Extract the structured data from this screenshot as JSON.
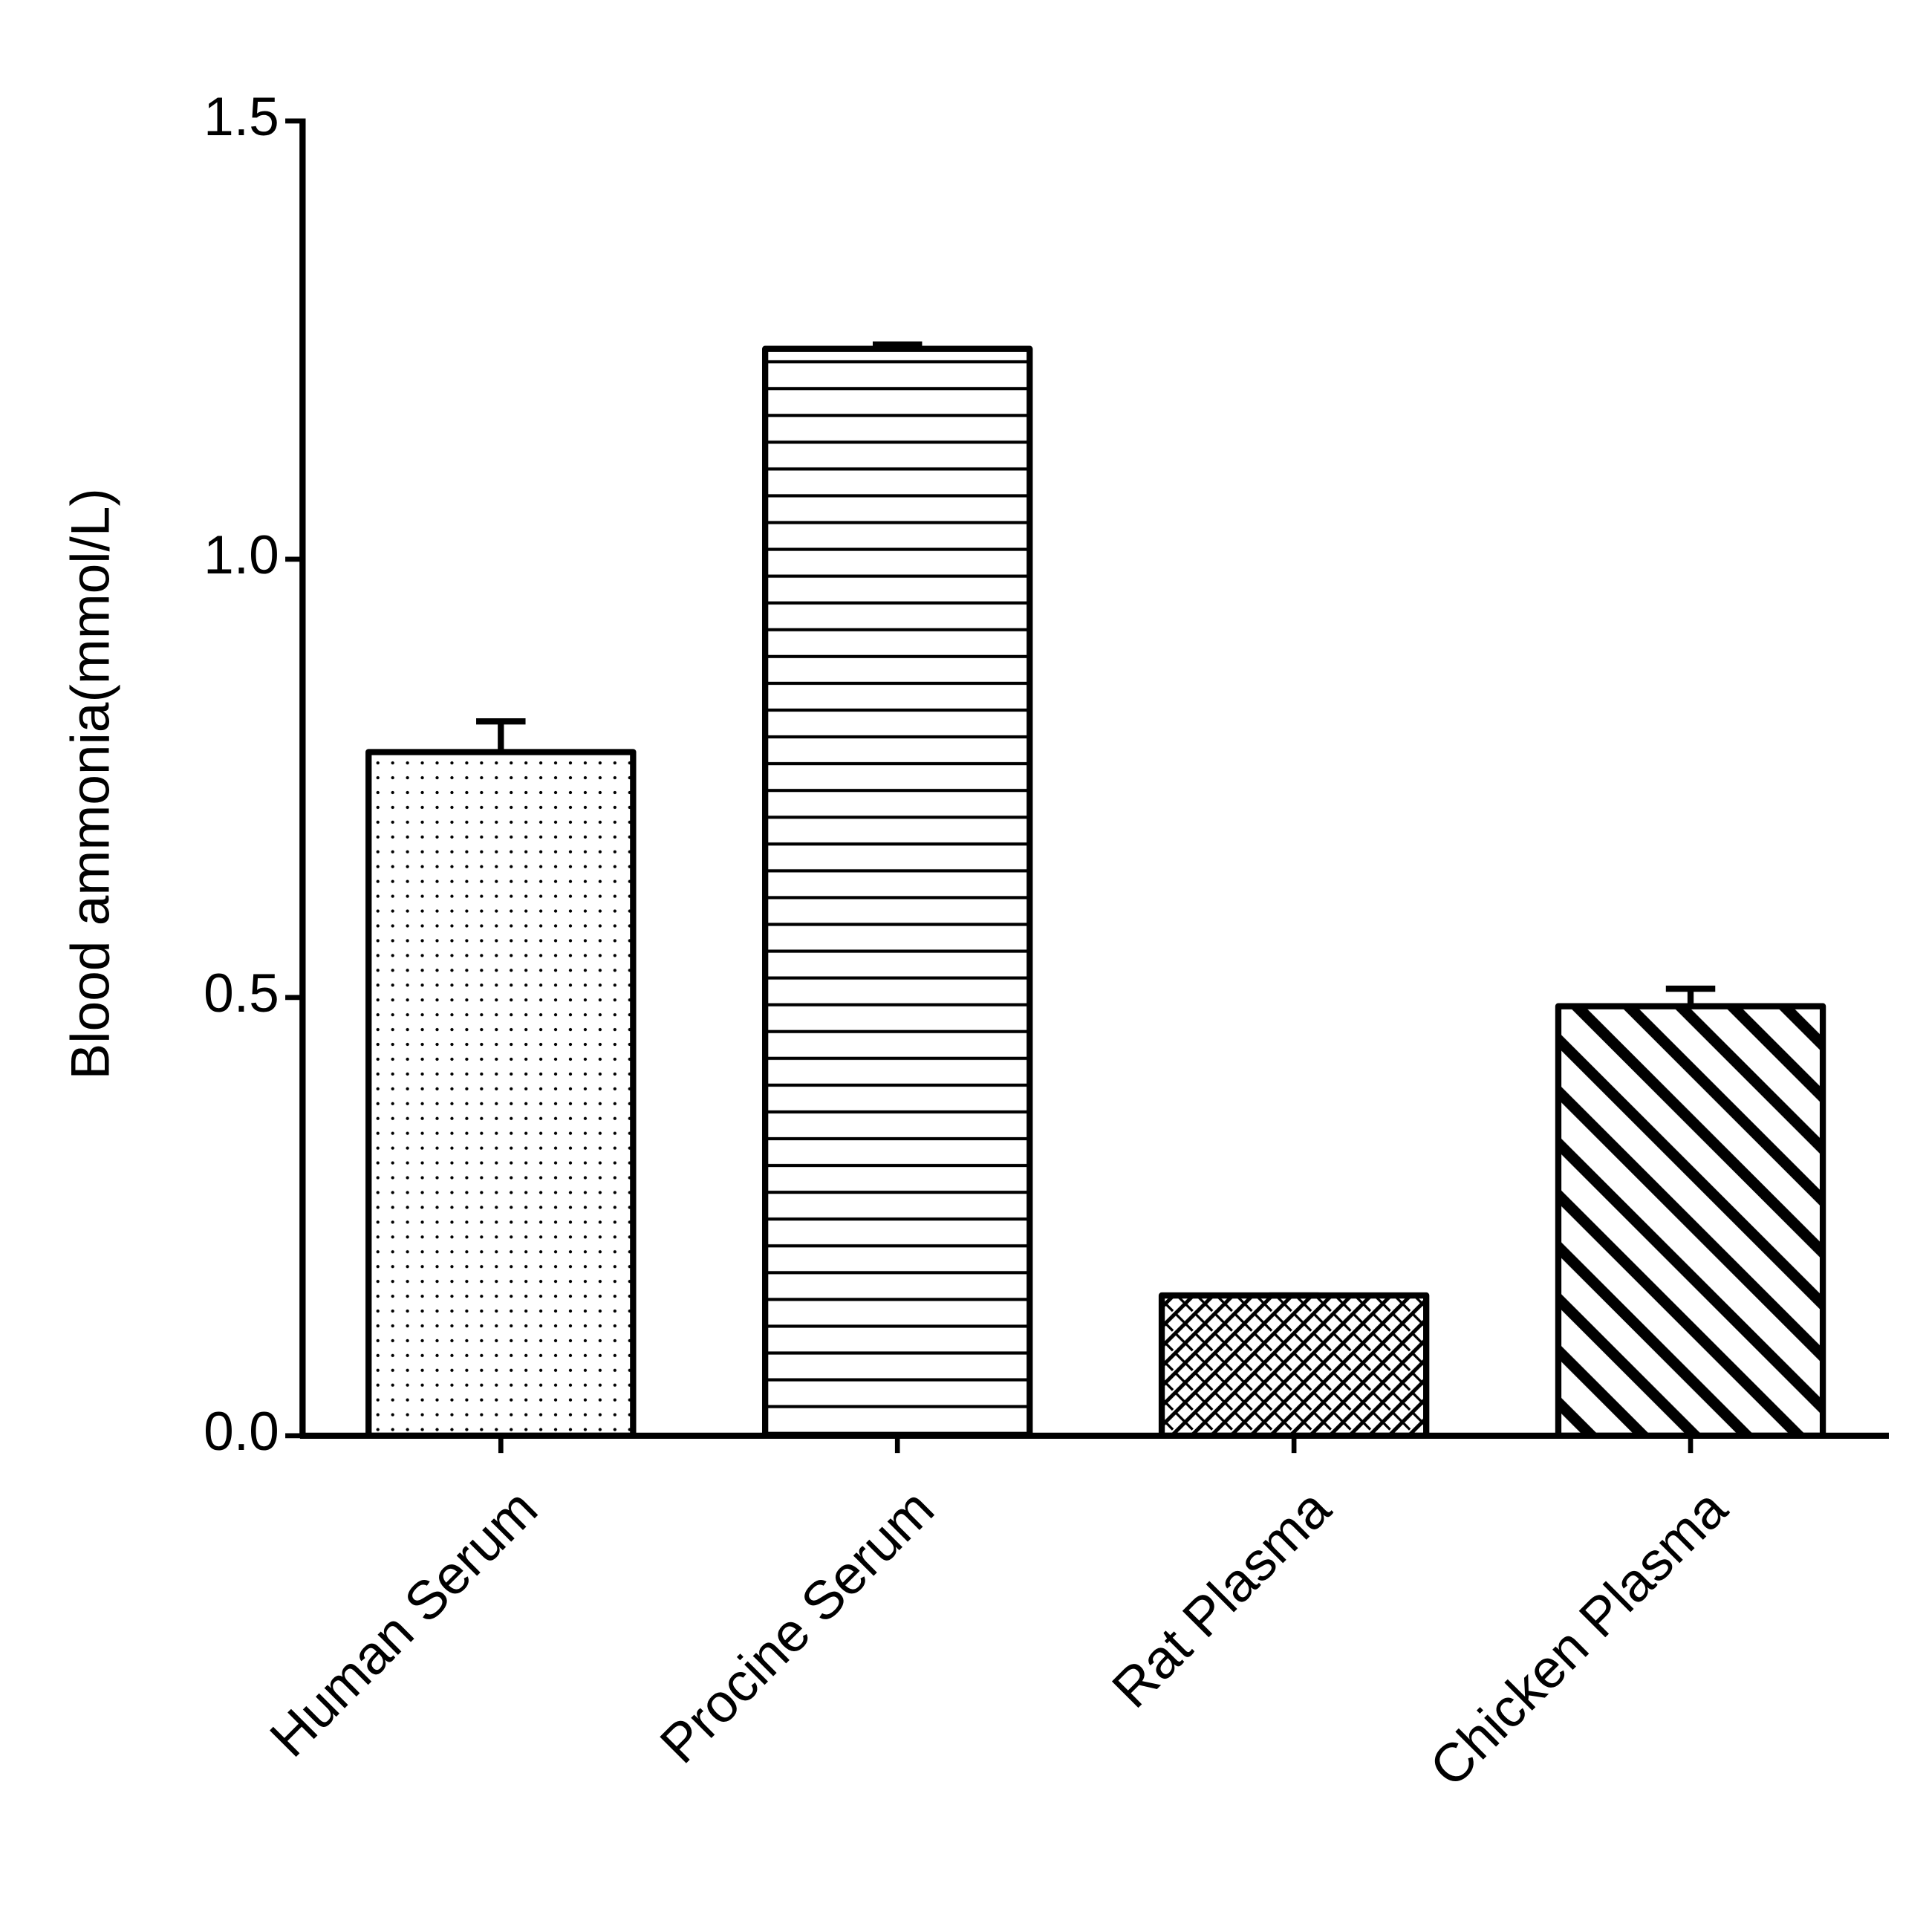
{
  "chart_data": {
    "type": "bar",
    "y_label": "Blood ammonia(mmol/L)",
    "categories": [
      "Human Serum",
      "Procine Serum",
      "Rat Plasma",
      "Chicken Plasma"
    ],
    "values": [
      0.78,
      1.24,
      0.16,
      0.49
    ],
    "errors": [
      0.035,
      0.005,
      0,
      0.02
    ],
    "patterns": [
      "dots",
      "horizontal",
      "crosshatch",
      "diagonal"
    ],
    "color": "#000000",
    "ylim": [
      0,
      1.5
    ],
    "yticks": [
      {
        "value": 0,
        "label": "0.0"
      },
      0.5,
      {
        "value": 1,
        "label": "1.0"
      },
      1.5
    ],
    "grid": false
  }
}
